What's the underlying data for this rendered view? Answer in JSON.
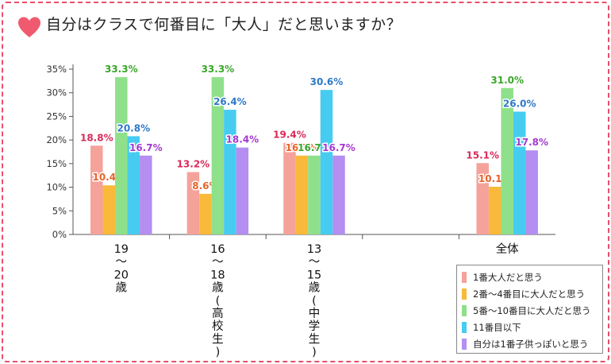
{
  "title": "自分はクラスで何番目に「大人」だと思いますか？",
  "colors": {
    "frame": "#e8506a",
    "heart": "#f05a6e",
    "series": [
      "#f4a29a",
      "#f9b93a",
      "#8fe08a",
      "#46ccf0",
      "#b48ef0"
    ],
    "labels": [
      "#d92b5a",
      "#e8632a",
      "#3aa62a",
      "#2e79c8",
      "#a43ad0"
    ]
  },
  "chart_data": {
    "type": "bar",
    "categories": [
      "19〜20歳",
      "16〜18歳(高校生)",
      "13〜15歳(中学生)",
      "",
      "全体"
    ],
    "category_label_lines": [
      [
        "19",
        "〜",
        "20",
        "歳"
      ],
      [
        "16",
        "〜",
        "18",
        "歳",
        "(",
        "高",
        "校",
        "生",
        ")"
      ],
      [
        "13",
        "〜",
        "15",
        "歳",
        "(",
        "中",
        "学",
        "生",
        ")"
      ],
      [],
      [
        "全体"
      ]
    ],
    "series": [
      {
        "name": "1番大人だと思う",
        "values": [
          18.8,
          13.2,
          19.4,
          null,
          15.1
        ]
      },
      {
        "name": "2番〜4番目に大人だと思う",
        "values": [
          10.4,
          8.6,
          16.7,
          null,
          10.1
        ]
      },
      {
        "name": "5番〜10番目に大人だと思う",
        "values": [
          33.3,
          33.3,
          16.7,
          null,
          31.0
        ]
      },
      {
        "name": "11番目以下",
        "values": [
          20.8,
          26.4,
          30.6,
          null,
          26.0
        ]
      },
      {
        "name": "自分は1番子供っぽいと思う",
        "values": [
          16.7,
          18.4,
          16.7,
          null,
          17.8
        ]
      }
    ],
    "yticks": [
      "0%",
      "5%",
      "10%",
      "15%",
      "20%",
      "25%",
      "30%",
      "35%"
    ],
    "ylim": [
      0,
      35
    ],
    "value_suffix": "%",
    "legend_position": "bottom-right",
    "grid": false
  }
}
